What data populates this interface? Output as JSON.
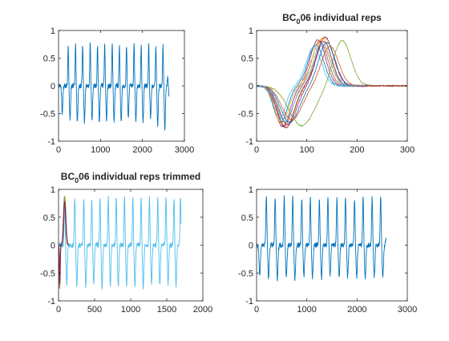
{
  "figure": {
    "background": "#ffffff",
    "axis_color": "#262626"
  },
  "chart_data": [
    {
      "type": "line",
      "title_parts": [],
      "xlim": [
        0,
        3000
      ],
      "ylim": [
        -1,
        1
      ],
      "xticks": [
        0,
        1000,
        2000,
        3000
      ],
      "yticks": [
        -1,
        -0.5,
        0,
        0.5,
        1
      ],
      "xtick_labels": [
        "0",
        "1000",
        "2000",
        "3000"
      ],
      "ytick_labels": [
        "-1",
        "-0.5",
        "0",
        "0.5",
        "1"
      ],
      "grid": false,
      "series": [
        {
          "color": "#0072BD",
          "signal": {
            "x_end": 2630,
            "peaks_x": [
              45,
              230,
              405,
              575,
              755,
              930,
              1100,
              1280,
              1450,
              1620,
              1800,
              1970,
              2150,
              2320,
              2490,
              2600
            ],
            "peaks_y": [
              0.0,
              0.72,
              0.75,
              0.73,
              0.75,
              0.74,
              0.74,
              0.75,
              0.74,
              0.72,
              0.74,
              0.74,
              0.74,
              0.72,
              0.73,
              0.15
            ],
            "troughs_y": [
              -0.53,
              -0.62,
              -0.65,
              -0.66,
              -0.58,
              -0.68,
              -0.62,
              -0.65,
              -0.66,
              -0.58,
              -0.63,
              -0.67,
              -0.6,
              -0.72,
              -0.78,
              -0.3
            ]
          }
        }
      ]
    },
    {
      "type": "line",
      "title_parts": [
        {
          "text": "BC",
          "sub": false
        },
        {
          "text": "0",
          "sub": true
        },
        {
          "text": "06 individual reps",
          "sub": false
        }
      ],
      "xlim": [
        0,
        300
      ],
      "ylim": [
        -1,
        1
      ],
      "xticks": [
        0,
        100,
        200,
        300
      ],
      "yticks": [
        -1,
        -0.5,
        0,
        0.5,
        1
      ],
      "xtick_labels": [
        "0",
        "100",
        "200",
        "300"
      ],
      "ytick_labels": [
        "-1",
        "-0.5",
        "0",
        "0.5",
        "1"
      ],
      "grid": false,
      "series": [
        {
          "color": "#0072BD",
          "trough_x": 48,
          "trough_y": -0.66,
          "peak_x": 118,
          "peak_y": 0.74,
          "end_x": 205
        },
        {
          "color": "#D95319",
          "trough_x": 55,
          "trough_y": -0.72,
          "peak_x": 126,
          "peak_y": 0.8,
          "end_x": 215
        },
        {
          "color": "#EDB120",
          "trough_x": 60,
          "trough_y": -0.7,
          "peak_x": 132,
          "peak_y": 0.86,
          "end_x": 220
        },
        {
          "color": "#7E2F8E",
          "trough_x": 52,
          "trough_y": -0.74,
          "peak_x": 122,
          "peak_y": 0.83,
          "end_x": 210
        },
        {
          "color": "#77AC30",
          "trough_x": 90,
          "trough_y": -0.72,
          "peak_x": 170,
          "peak_y": 0.82,
          "end_x": 300
        },
        {
          "color": "#4DBEEE",
          "trough_x": 45,
          "trough_y": -0.6,
          "peak_x": 114,
          "peak_y": 0.7,
          "end_x": 200
        },
        {
          "color": "#A2142F",
          "trough_x": 58,
          "trough_y": -0.76,
          "peak_x": 136,
          "peak_y": 0.88,
          "end_x": 300
        },
        {
          "color": "#0072BD",
          "trough_x": 66,
          "trough_y": -0.66,
          "peak_x": 140,
          "peak_y": 0.78,
          "end_x": 225
        },
        {
          "color": "#D95319",
          "trough_x": 70,
          "trough_y": -0.62,
          "peak_x": 146,
          "peak_y": 0.72,
          "end_x": 230
        },
        {
          "color": "#EDB120",
          "trough_x": 50,
          "trough_y": -0.68,
          "peak_x": 128,
          "peak_y": 0.84,
          "end_x": 215
        },
        {
          "color": "#7E2F8E",
          "trough_x": 62,
          "trough_y": -0.7,
          "peak_x": 134,
          "peak_y": 0.8,
          "end_x": 220
        },
        {
          "color": "#4DBEEE",
          "trough_x": 56,
          "trough_y": -0.64,
          "peak_x": 130,
          "peak_y": 0.76,
          "end_x": 215
        }
      ]
    },
    {
      "type": "line",
      "title_parts": [
        {
          "text": "BC",
          "sub": false
        },
        {
          "text": "0",
          "sub": true
        },
        {
          "text": "06 individual reps trimmed",
          "sub": false
        }
      ],
      "xlim": [
        0,
        2000
      ],
      "ylim": [
        -1,
        1
      ],
      "xticks": [
        0,
        500,
        1000,
        1500,
        2000
      ],
      "yticks": [
        -1,
        -0.5,
        0,
        0.5,
        1
      ],
      "xtick_labels": [
        "0",
        "500",
        "1000",
        "1500",
        "2000"
      ],
      "ytick_labels": [
        "-1",
        "-0.5",
        "0",
        "0.5",
        "1"
      ],
      "grid": false,
      "series": [
        {
          "color": "#4DBEEE",
          "signal": {
            "x_end": 1700,
            "peaks_x": [
              85,
              225,
              350,
              460,
              575,
              690,
              800,
              915,
              1030,
              1145,
              1260,
              1375,
              1490,
              1600,
              1690
            ],
            "peaks_y": [
              0.86,
              0.86,
              0.83,
              0.85,
              0.86,
              0.87,
              0.86,
              0.88,
              0.86,
              0.87,
              0.86,
              0.87,
              0.86,
              0.86,
              0.88
            ],
            "troughs_y": [
              -0.7,
              -0.72,
              -0.75,
              -0.7,
              -0.76,
              -0.72,
              -0.74,
              -0.7,
              -0.73,
              -0.75,
              -0.7,
              -0.73,
              -0.71,
              -0.72,
              -0.7
            ]
          }
        },
        {
          "color": "#0072BD",
          "trough_x": 12,
          "trough_y": -0.76,
          "peak_x": 82,
          "peak_y": 0.85,
          "end_x": 130
        },
        {
          "color": "#D95319",
          "trough_x": 15,
          "trough_y": -0.78,
          "peak_x": 85,
          "peak_y": 0.88,
          "end_x": 132
        },
        {
          "color": "#EDB120",
          "trough_x": 18,
          "trough_y": -0.72,
          "peak_x": 88,
          "peak_y": 0.82,
          "end_x": 135
        },
        {
          "color": "#7E2F8E",
          "trough_x": 20,
          "trough_y": -0.7,
          "peak_x": 90,
          "peak_y": 0.8,
          "end_x": 135
        },
        {
          "color": "#77AC30",
          "trough_x": 14,
          "trough_y": -0.74,
          "peak_x": 86,
          "peak_y": 0.86,
          "end_x": 138
        },
        {
          "color": "#A2142F",
          "trough_x": 16,
          "trough_y": -0.68,
          "peak_x": 84,
          "peak_y": 0.78,
          "end_x": 130
        }
      ]
    },
    {
      "type": "line",
      "title_parts": [],
      "xlim": [
        0,
        3000
      ],
      "ylim": [
        -1,
        1
      ],
      "xticks": [
        0,
        1000,
        2000,
        3000
      ],
      "yticks": [
        -1,
        -0.5,
        0,
        0.5,
        1
      ],
      "xtick_labels": [
        "0",
        "1000",
        "2000",
        "3000"
      ],
      "ytick_labels": [
        "-1",
        "-0.5",
        "0",
        "0.5",
        "1"
      ],
      "grid": false,
      "series": [
        {
          "color": "#0072BD",
          "signal": {
            "x_end": 2580,
            "peaks_x": [
              20,
              195,
              370,
              550,
              720,
              900,
              1070,
              1250,
              1420,
              1600,
              1770,
              1950,
              2120,
              2300,
              2470,
              2575
            ],
            "peaks_y": [
              0.0,
              0.88,
              0.84,
              0.86,
              0.85,
              0.84,
              0.86,
              0.82,
              0.86,
              0.86,
              0.85,
              0.84,
              0.86,
              0.85,
              0.88,
              0.1
            ],
            "troughs_y": [
              -0.55,
              -0.58,
              -0.6,
              -0.56,
              -0.62,
              -0.55,
              -0.58,
              -0.6,
              -0.55,
              -0.6,
              -0.58,
              -0.57,
              -0.6,
              -0.56,
              -0.57,
              -0.2
            ]
          }
        }
      ]
    }
  ]
}
